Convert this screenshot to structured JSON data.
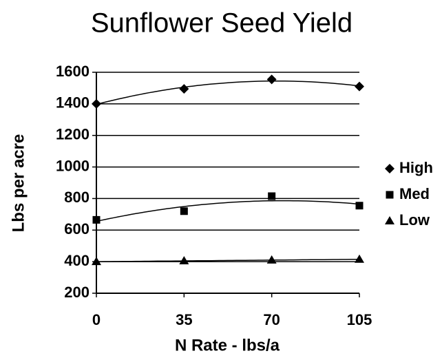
{
  "chart_data": {
    "type": "scatter",
    "title": "Sunflower Seed Yield",
    "x_label": "N Rate - lbs/a",
    "y_label": "Lbs per acre",
    "x": [
      0,
      35,
      70,
      105
    ],
    "series": [
      {
        "name": "High",
        "color": "#000000",
        "marker": "diamond",
        "values": [
          1400,
          1495,
          1555,
          1510
        ]
      },
      {
        "name": "Med",
        "color": "#000000",
        "marker": "square",
        "values": [
          665,
          720,
          815,
          755
        ]
      },
      {
        "name": "Low",
        "color": "#000000",
        "marker": "triangle",
        "values": [
          400,
          405,
          410,
          415
        ]
      }
    ],
    "trendline": "polynomial",
    "xlim": [
      0,
      105
    ],
    "xticks": [
      0,
      35,
      70,
      105
    ],
    "ylim": [
      200,
      1600
    ],
    "yticks": [
      200,
      400,
      600,
      800,
      1000,
      1200,
      1400,
      1600
    ],
    "grid": true,
    "legend": "right"
  }
}
